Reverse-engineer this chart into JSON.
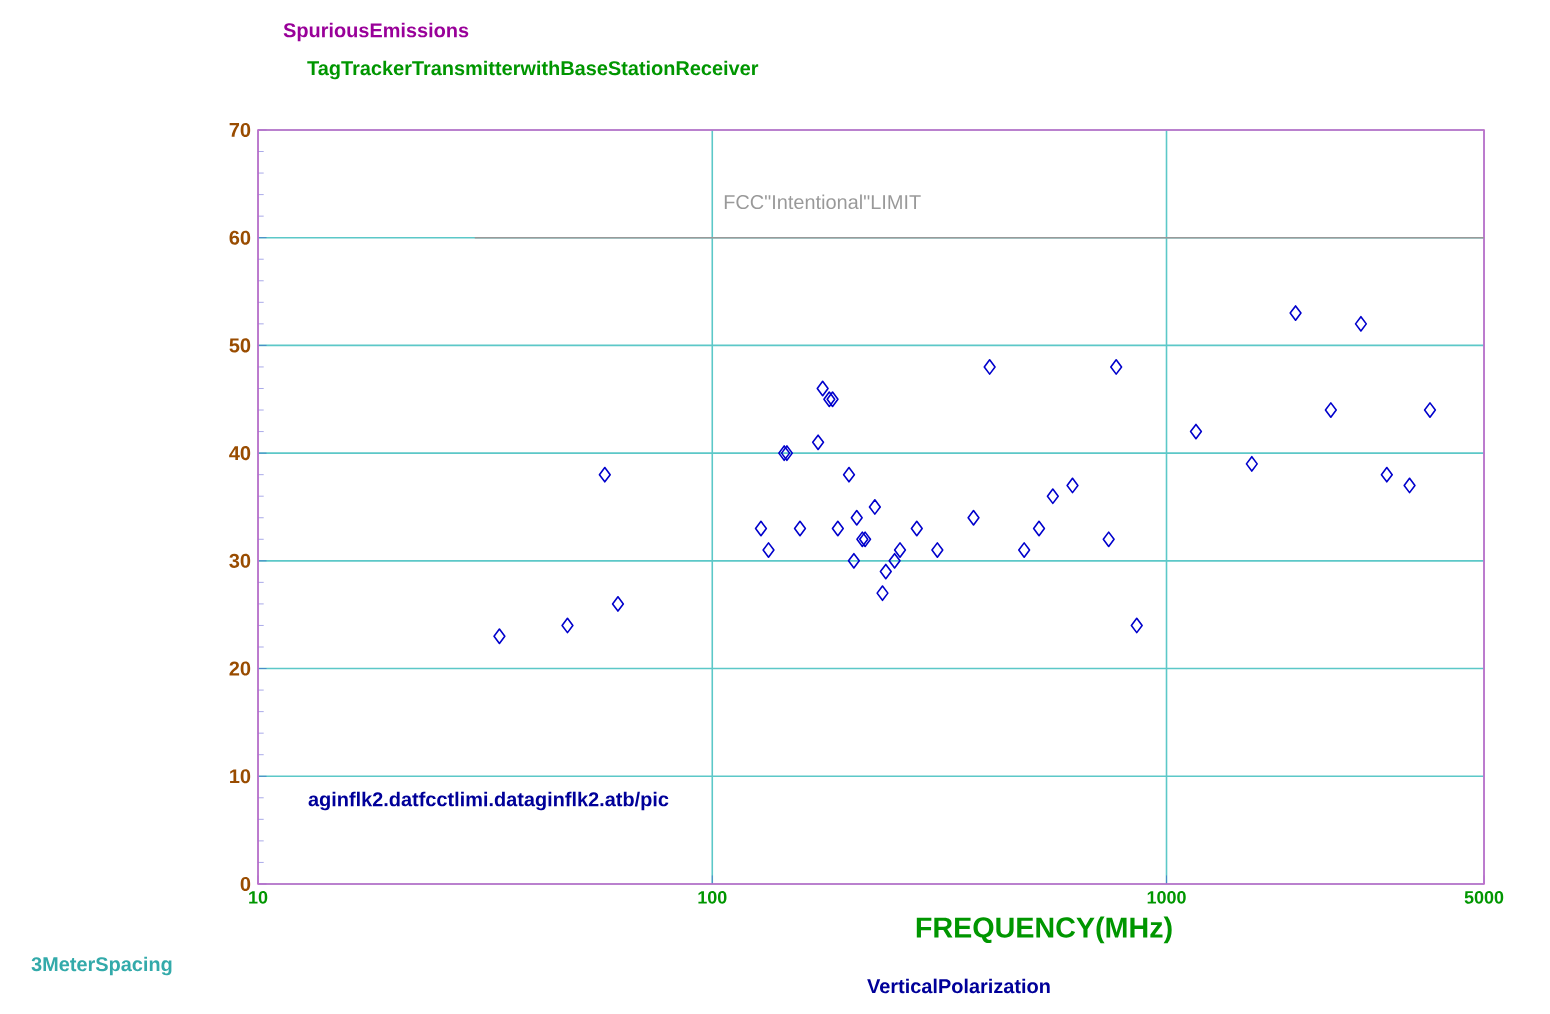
{
  "chart_data": {
    "type": "scatter",
    "title": "SpuriousEmissions",
    "subtitle": "TagTrackerTransmitterwithBaseStationReceiver",
    "xlabel": "FREQUENCY(MHz)",
    "annotations": [
      "aginflk2.datfcctlimi.dataginflk2.atb/pic",
      "3MeterSpacing",
      "VerticalPolarization"
    ],
    "log": "x",
    "grid": true,
    "xlim": [
      10,
      5000
    ],
    "ylim": [
      0,
      70
    ],
    "xticks": [
      10,
      100,
      1000,
      5000
    ],
    "yticks": [
      0,
      10,
      20,
      30,
      40,
      50,
      60,
      70
    ],
    "series": [
      {
        "marker": "diamond",
        "color": "#0000cc",
        "x": [
          34,
          48,
          58,
          62,
          128,
          133,
          144,
          146,
          156,
          171,
          175,
          181,
          184,
          189,
          200,
          208,
          228,
          214,
          217,
          205,
          237,
          241,
          252,
          259,
          282,
          313,
          376,
          408,
          486,
          524,
          562,
          621,
          746,
          775,
          860,
          1161,
          1541,
          1924,
          2300,
          2679,
          3055,
          3428,
          3802
        ],
        "values": [
          23,
          24,
          38,
          26,
          33,
          31,
          40,
          40,
          33,
          41,
          46,
          45,
          45,
          33,
          38,
          34,
          35,
          32,
          32,
          30,
          27,
          29,
          30,
          31,
          33,
          31,
          34,
          48,
          31,
          33,
          36,
          37,
          32,
          48,
          24,
          42,
          39,
          53,
          44,
          52,
          38,
          37,
          44
        ]
      },
      {
        "type": "line",
        "marker": "none",
        "name": "FCC\"Intentional\"LIMIT",
        "color": "#999999",
        "line_style": "solid",
        "x": [
          30,
          5000
        ],
        "values": [
          60,
          60
        ]
      }
    ]
  }
}
